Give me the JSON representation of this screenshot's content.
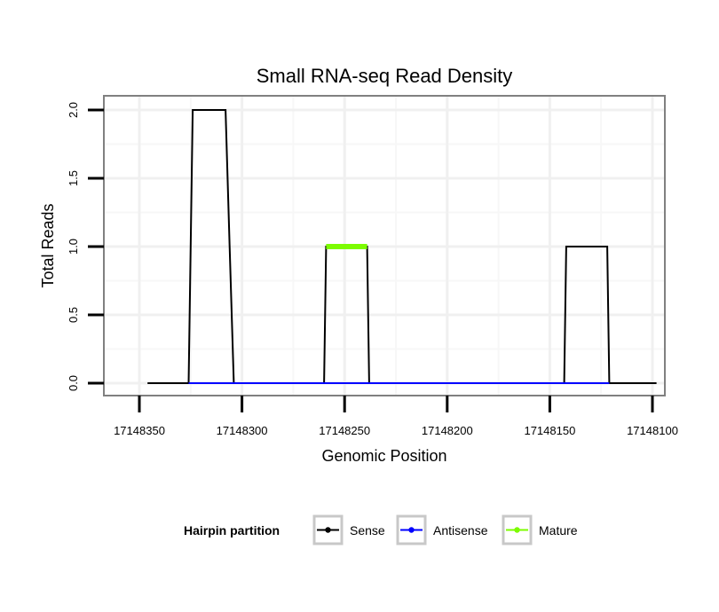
{
  "chart_data": {
    "type": "line",
    "title": "Small RNA-seq Read Density",
    "xlabel": "Genomic Position",
    "ylabel": "Total Reads",
    "x_reversed": true,
    "xlim": [
      17148355,
      17148105
    ],
    "ylim": [
      0,
      2
    ],
    "x_ticks": [
      17148350,
      17148300,
      17148250,
      17148200,
      17148150,
      17148100
    ],
    "x_tick_labels": [
      "17148350",
      "17148300",
      "17148250",
      "17148200",
      "17148150",
      "17148100"
    ],
    "y_ticks": [
      0,
      0.5,
      1,
      1.5,
      2
    ],
    "y_tick_labels": [
      "0.0",
      "0.5",
      "1.0",
      "1.5",
      "2.0"
    ],
    "grid": true,
    "series": [
      {
        "name": "Sense",
        "color": "#000000",
        "x": [
          17148346,
          17148326,
          17148324,
          17148308,
          17148306,
          17148306,
          17148304,
          17148260,
          17148259,
          17148239,
          17148238,
          17148143,
          17148142,
          17148122,
          17148121,
          17148098
        ],
        "y": [
          0,
          0,
          2,
          2,
          1,
          1,
          0,
          0,
          1,
          1,
          0,
          0,
          1,
          1,
          0,
          0
        ]
      },
      {
        "name": "Antisense",
        "color": "#0000ff",
        "x": [
          17148326,
          17148304,
          17148259,
          17148238,
          17148142,
          17148121
        ],
        "y": [
          0,
          0,
          0,
          0,
          0,
          0
        ]
      },
      {
        "name": "Mature",
        "color": "#7cfc00",
        "x": [
          17148259,
          17148239
        ],
        "y": [
          1,
          1
        ]
      }
    ],
    "legend": {
      "title": "Hairpin partition",
      "position": "bottom",
      "entries": [
        "Sense",
        "Antisense",
        "Mature"
      ]
    }
  }
}
